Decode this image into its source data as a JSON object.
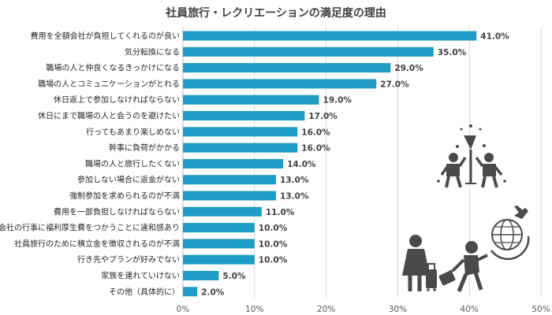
{
  "chart_data": {
    "type": "bar",
    "orientation": "horizontal",
    "title": "社員旅行・レクリエーションの満足度の理由",
    "xlabel": "",
    "ylabel": "",
    "xlim": [
      0,
      50
    ],
    "xticks": [
      "0%",
      "10%",
      "20%",
      "30%",
      "40%",
      "50%"
    ],
    "grid": true,
    "value_suffix": "%",
    "bar_color": "#1f9cc5",
    "categories": [
      "費用を全額会社が負担してくれるのが良い",
      "気分転換になる",
      "職場の人と仲良くなるきっかけになる",
      "職場の人とコミュニケーションがとれる",
      "休日返上で参加しなければならない",
      "休日にまで職場の人と会うのを避けたい",
      "行ってもあまり楽しめない",
      "幹事に負荷がかかる",
      "職場の人と旅行したくない",
      "参加しない場合に返金がない",
      "強制参加を求められるのが不満",
      "費用を一部負担しなければならない",
      "会社の行事に福利厚生費をつかうことに違和感あり",
      "社員旅行のために積立金を徴収されるのが不満",
      "行き先やプランが好みでない",
      "家族を連れていけない",
      "その他（具体的に）"
    ],
    "values": [
      41.0,
      35.0,
      29.0,
      27.0,
      19.0,
      17.0,
      16.0,
      16.0,
      14.0,
      13.0,
      13.0,
      11.0,
      10.0,
      10.0,
      10.0,
      5.0,
      2.0
    ],
    "value_labels": [
      "41.0%",
      "35.0%",
      "29.0%",
      "27.0%",
      "19.0%",
      "17.0%",
      "16.0%",
      "16.0%",
      "14.0%",
      "13.0%",
      "13.0%",
      "11.0%",
      "10.0%",
      "10.0%",
      "10.0%",
      "5.0%",
      "2.0%"
    ]
  },
  "decorations": {
    "icons": [
      "party-people-icon",
      "globe-airplane-icon",
      "travelers-luggage-icon"
    ]
  }
}
